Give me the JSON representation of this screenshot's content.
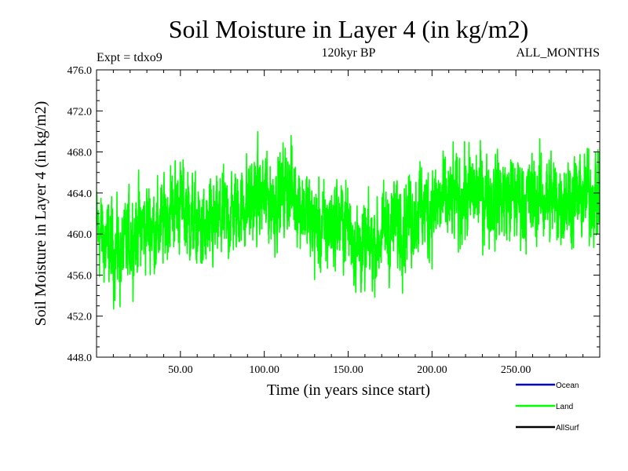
{
  "chart_data": {
    "type": "line",
    "title": "Soil Moisture in Layer 4 (in kg/m2)",
    "subtitle_left": "Expt = tdxo9",
    "subtitle_center": "120kyr BP",
    "subtitle_right": "ALL_MONTHS",
    "xlabel": "Time (in years since start)",
    "ylabel": "Soil Moisture in Layer 4 (in kg/m2)",
    "xlim": [
      0,
      300
    ],
    "ylim": [
      448.0,
      476.0
    ],
    "x_tick_labels": [
      "50.00",
      "100.00",
      "150.00",
      "200.00",
      "250.00"
    ],
    "x_tick_values": [
      50,
      100,
      150,
      200,
      250
    ],
    "y_tick_labels": [
      "448.0",
      "452.0",
      "456.0",
      "460.0",
      "464.0",
      "468.0",
      "472.0",
      "476.0"
    ],
    "y_tick_values": [
      448,
      452,
      456,
      460,
      464,
      468,
      472,
      476
    ],
    "legend_placement": "bottom-right",
    "series": [
      {
        "name": "Land",
        "color": "#00ff00",
        "x": [
          0,
          5,
          10,
          15,
          20,
          25,
          30,
          35,
          40,
          45,
          50,
          55,
          60,
          65,
          70,
          75,
          80,
          85,
          90,
          95,
          100,
          105,
          110,
          115,
          120,
          125,
          130,
          135,
          140,
          145,
          150,
          155,
          160,
          165,
          170,
          175,
          180,
          185,
          190,
          195,
          200,
          205,
          210,
          215,
          220,
          225,
          230,
          235,
          240,
          245,
          250,
          255,
          260,
          265,
          270,
          275,
          280,
          285,
          290,
          295,
          300
        ],
        "y": [
          461,
          459,
          458.5,
          458,
          459.5,
          460.5,
          461,
          460.5,
          461,
          462.5,
          463,
          462,
          460.5,
          460,
          460.5,
          461.5,
          462,
          462.5,
          463,
          463.5,
          463.5,
          463,
          464,
          464.5,
          463.5,
          462,
          460.5,
          460.5,
          461,
          461.5,
          461,
          459,
          458.5,
          459,
          460,
          460.5,
          461,
          461.5,
          462,
          462.5,
          462.5,
          463,
          463,
          463.5,
          463.5,
          464,
          464,
          463.5,
          463.5,
          463.5,
          463.5,
          463.5,
          463,
          463.5,
          463.5,
          463.5,
          463.5,
          463.5,
          463.5,
          464,
          463.5
        ]
      }
    ],
    "legend": [
      {
        "label": "Ocean",
        "color": "#0000cc"
      },
      {
        "label": "Land",
        "color": "#00ff00"
      },
      {
        "label": "AllSurf",
        "color": "#000000"
      }
    ]
  }
}
